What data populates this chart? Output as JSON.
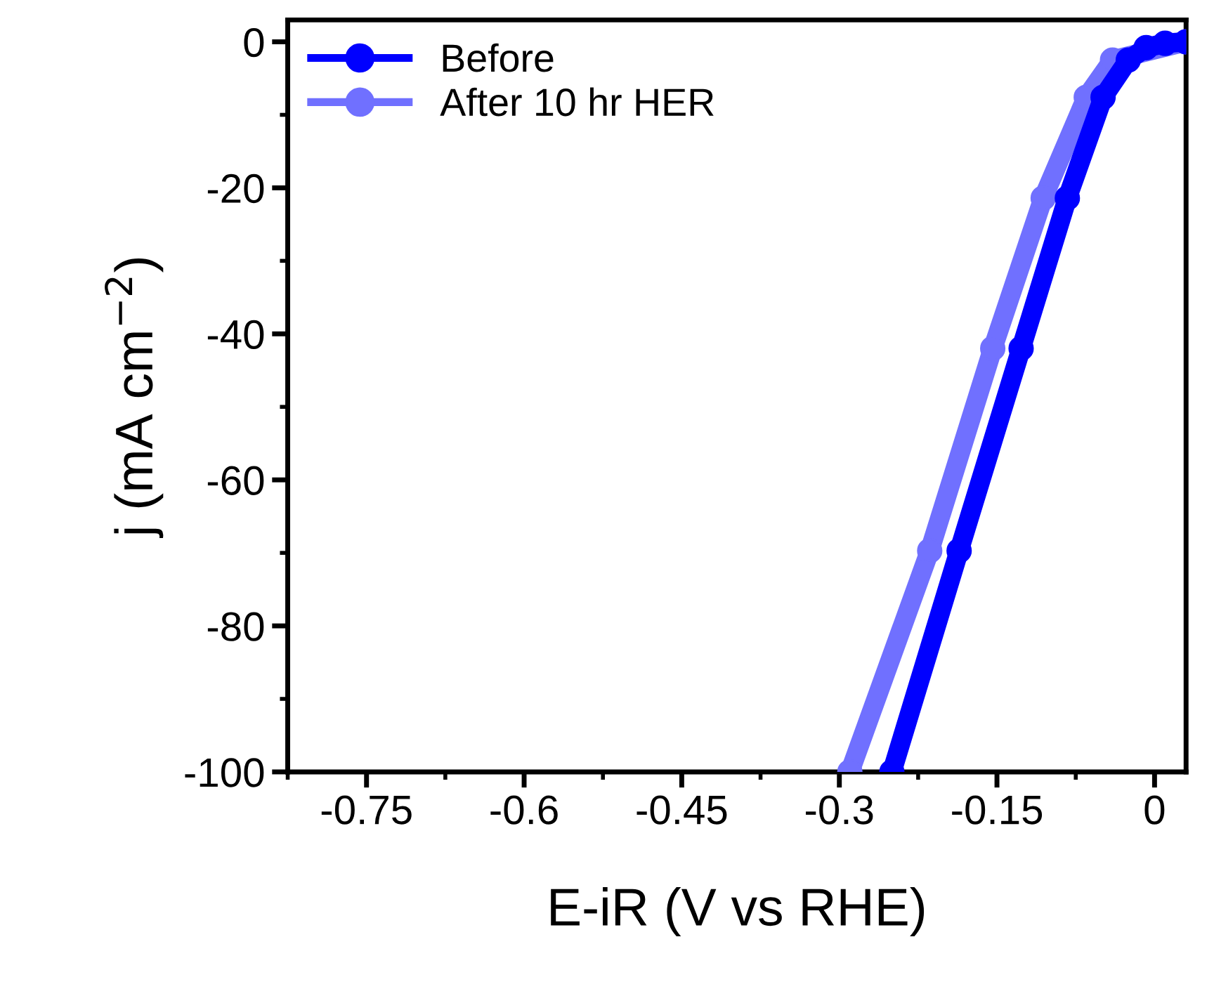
{
  "chart_data": {
    "type": "line",
    "xlabel": "E-iR (V vs RHE)",
    "ylabel": "j (mA cm$^{−2}$)",
    "xlim": [
      -0.825,
      0.03
    ],
    "ylim": [
      -100,
      3
    ],
    "xticks": [
      -0.75,
      -0.6,
      -0.45,
      -0.3,
      -0.15,
      0
    ],
    "yticks": [
      0,
      -20,
      -40,
      -60,
      -80,
      -100
    ],
    "grid": false,
    "legend": "top left",
    "marker": "circle",
    "line_style": "solid",
    "series": [
      {
        "name": "Before",
        "color": "#0000ff",
        "x": [
          -0.25,
          -0.186,
          -0.127,
          -0.083,
          -0.049,
          -0.025,
          -0.008,
          0.01,
          0.03
        ],
        "values": [
          -100,
          -69.7,
          -42,
          -21.4,
          -7.6,
          -2.5,
          -0.8,
          -0.2,
          0
        ]
      },
      {
        "name": "After 10 hr HER",
        "color": "#7070ff",
        "x": [
          -0.29,
          -0.214,
          -0.154,
          -0.106,
          -0.065,
          -0.04,
          0.03
        ],
        "values": [
          -100,
          -69.7,
          -42,
          -21.4,
          -7.6,
          -2.5,
          0
        ]
      }
    ]
  }
}
